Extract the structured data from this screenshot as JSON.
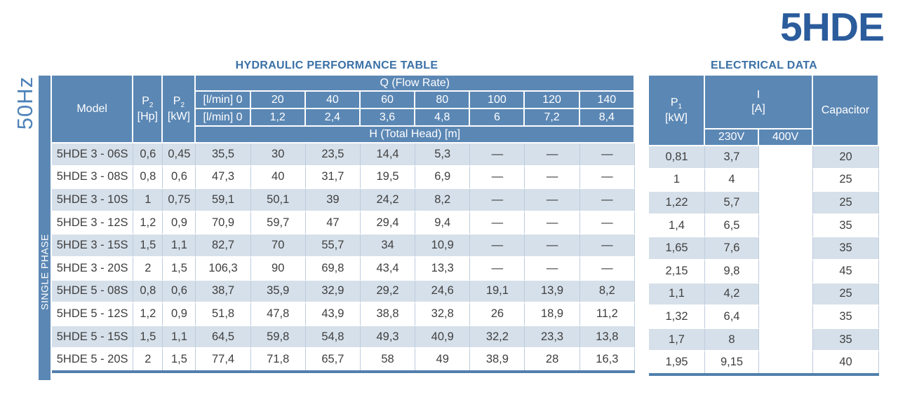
{
  "page": {
    "frequency_label": "50Hz",
    "product_title": "5HDE",
    "phase_label": "SINGLE PHASE"
  },
  "hydraulic_table": {
    "title": "HYDRAULIC PERFORMANCE TABLE",
    "header": {
      "model_label": "Model",
      "p2_symbol": "P",
      "p2_subscript": "2",
      "p2_hp_unit": "[Hp]",
      "p2_kw_unit": "[kW]",
      "q_banner": "Q (Flow Rate)",
      "flow_lmin_labels": [
        "[l/min] 0",
        "20",
        "40",
        "60",
        "80",
        "100",
        "120",
        "140"
      ],
      "flow_m3h_labels": [
        "[l/min] 0",
        "1,2",
        "2,4",
        "3,6",
        "4,8",
        "6",
        "7,2",
        "8,4"
      ],
      "h_banner": "H (Total Head) [m]"
    },
    "rows": [
      {
        "model": "5HDE 3 - 06S",
        "p2_hp": "0,6",
        "p2_kw": "0,45",
        "head_values": [
          "35,5",
          "30",
          "23,5",
          "14,4",
          "5,3",
          "—",
          "—",
          "—"
        ]
      },
      {
        "model": "5HDE 3 - 08S",
        "p2_hp": "0,8",
        "p2_kw": "0,6",
        "head_values": [
          "47,3",
          "40",
          "31,7",
          "19,5",
          "6,9",
          "—",
          "—",
          "—"
        ]
      },
      {
        "model": "5HDE 3 - 10S",
        "p2_hp": "1",
        "p2_kw": "0,75",
        "head_values": [
          "59,1",
          "50,1",
          "39",
          "24,2",
          "8,2",
          "—",
          "—",
          "—"
        ]
      },
      {
        "model": "5HDE 3 - 12S",
        "p2_hp": "1,2",
        "p2_kw": "0,9",
        "head_values": [
          "70,9",
          "59,7",
          "47",
          "29,4",
          "9,4",
          "—",
          "—",
          "—"
        ]
      },
      {
        "model": "5HDE 3 - 15S",
        "p2_hp": "1,5",
        "p2_kw": "1,1",
        "head_values": [
          "82,7",
          "70",
          "55,7",
          "34",
          "10,9",
          "—",
          "—",
          "—"
        ]
      },
      {
        "model": "5HDE 3 - 20S",
        "p2_hp": "2",
        "p2_kw": "1,5",
        "head_values": [
          "106,3",
          "90",
          "69,8",
          "43,4",
          "13,3",
          "—",
          "—",
          "—"
        ]
      },
      {
        "model": "5HDE 5 - 08S",
        "p2_hp": "0,8",
        "p2_kw": "0,6",
        "head_values": [
          "38,7",
          "35,9",
          "32,9",
          "29,2",
          "24,6",
          "19,1",
          "13,9",
          "8,2"
        ]
      },
      {
        "model": "5HDE 5 - 12S",
        "p2_hp": "1,2",
        "p2_kw": "0,9",
        "head_values": [
          "51,8",
          "47,8",
          "43,9",
          "38,8",
          "32,8",
          "26",
          "18,9",
          "11,2"
        ]
      },
      {
        "model": "5HDE 5 - 15S",
        "p2_hp": "1,5",
        "p2_kw": "1,1",
        "head_values": [
          "64,5",
          "59,8",
          "54,8",
          "49,3",
          "40,9",
          "32,2",
          "23,3",
          "13,8"
        ]
      },
      {
        "model": "5HDE 5 - 20S",
        "p2_hp": "2",
        "p2_kw": "1,5",
        "head_values": [
          "77,4",
          "71,8",
          "65,7",
          "58",
          "49",
          "38,9",
          "28",
          "16,3"
        ]
      }
    ]
  },
  "electrical_table": {
    "title": "ELECTRICAL DATA",
    "header": {
      "p1_symbol": "P",
      "p1_subscript": "1",
      "p1_unit": "[kW]",
      "current_symbol": "I",
      "current_unit": "[A]",
      "voltage_230": "230V",
      "voltage_400": "400V",
      "capacitor_label": "Capacitor"
    },
    "rows": [
      {
        "p1_kw": "0,81",
        "i_230v": "3,7",
        "i_400v": "",
        "capacitor": "20"
      },
      {
        "p1_kw": "1",
        "i_230v": "4",
        "i_400v": "",
        "capacitor": "25"
      },
      {
        "p1_kw": "1,22",
        "i_230v": "5,7",
        "i_400v": "",
        "capacitor": "25"
      },
      {
        "p1_kw": "1,4",
        "i_230v": "6,5",
        "i_400v": "",
        "capacitor": "35"
      },
      {
        "p1_kw": "1,65",
        "i_230v": "7,6",
        "i_400v": "",
        "capacitor": "35"
      },
      {
        "p1_kw": "2,15",
        "i_230v": "9,8",
        "i_400v": "",
        "capacitor": "45"
      },
      {
        "p1_kw": "1,1",
        "i_230v": "4,2",
        "i_400v": "",
        "capacitor": "25"
      },
      {
        "p1_kw": "1,32",
        "i_230v": "6,4",
        "i_400v": "",
        "capacitor": "35"
      },
      {
        "p1_kw": "1,7",
        "i_230v": "8",
        "i_400v": "",
        "capacitor": "35"
      },
      {
        "p1_kw": "1,95",
        "i_230v": "9,15",
        "i_400v": "",
        "capacitor": "40"
      }
    ]
  },
  "colors": {
    "header_blue": "#5b87b4",
    "stripe_blue": "#d6e0ea",
    "title_dark_blue": "#2b5c9c",
    "section_title_blue": "#3a70a6",
    "bottom_border_blue": "#5180ad"
  }
}
